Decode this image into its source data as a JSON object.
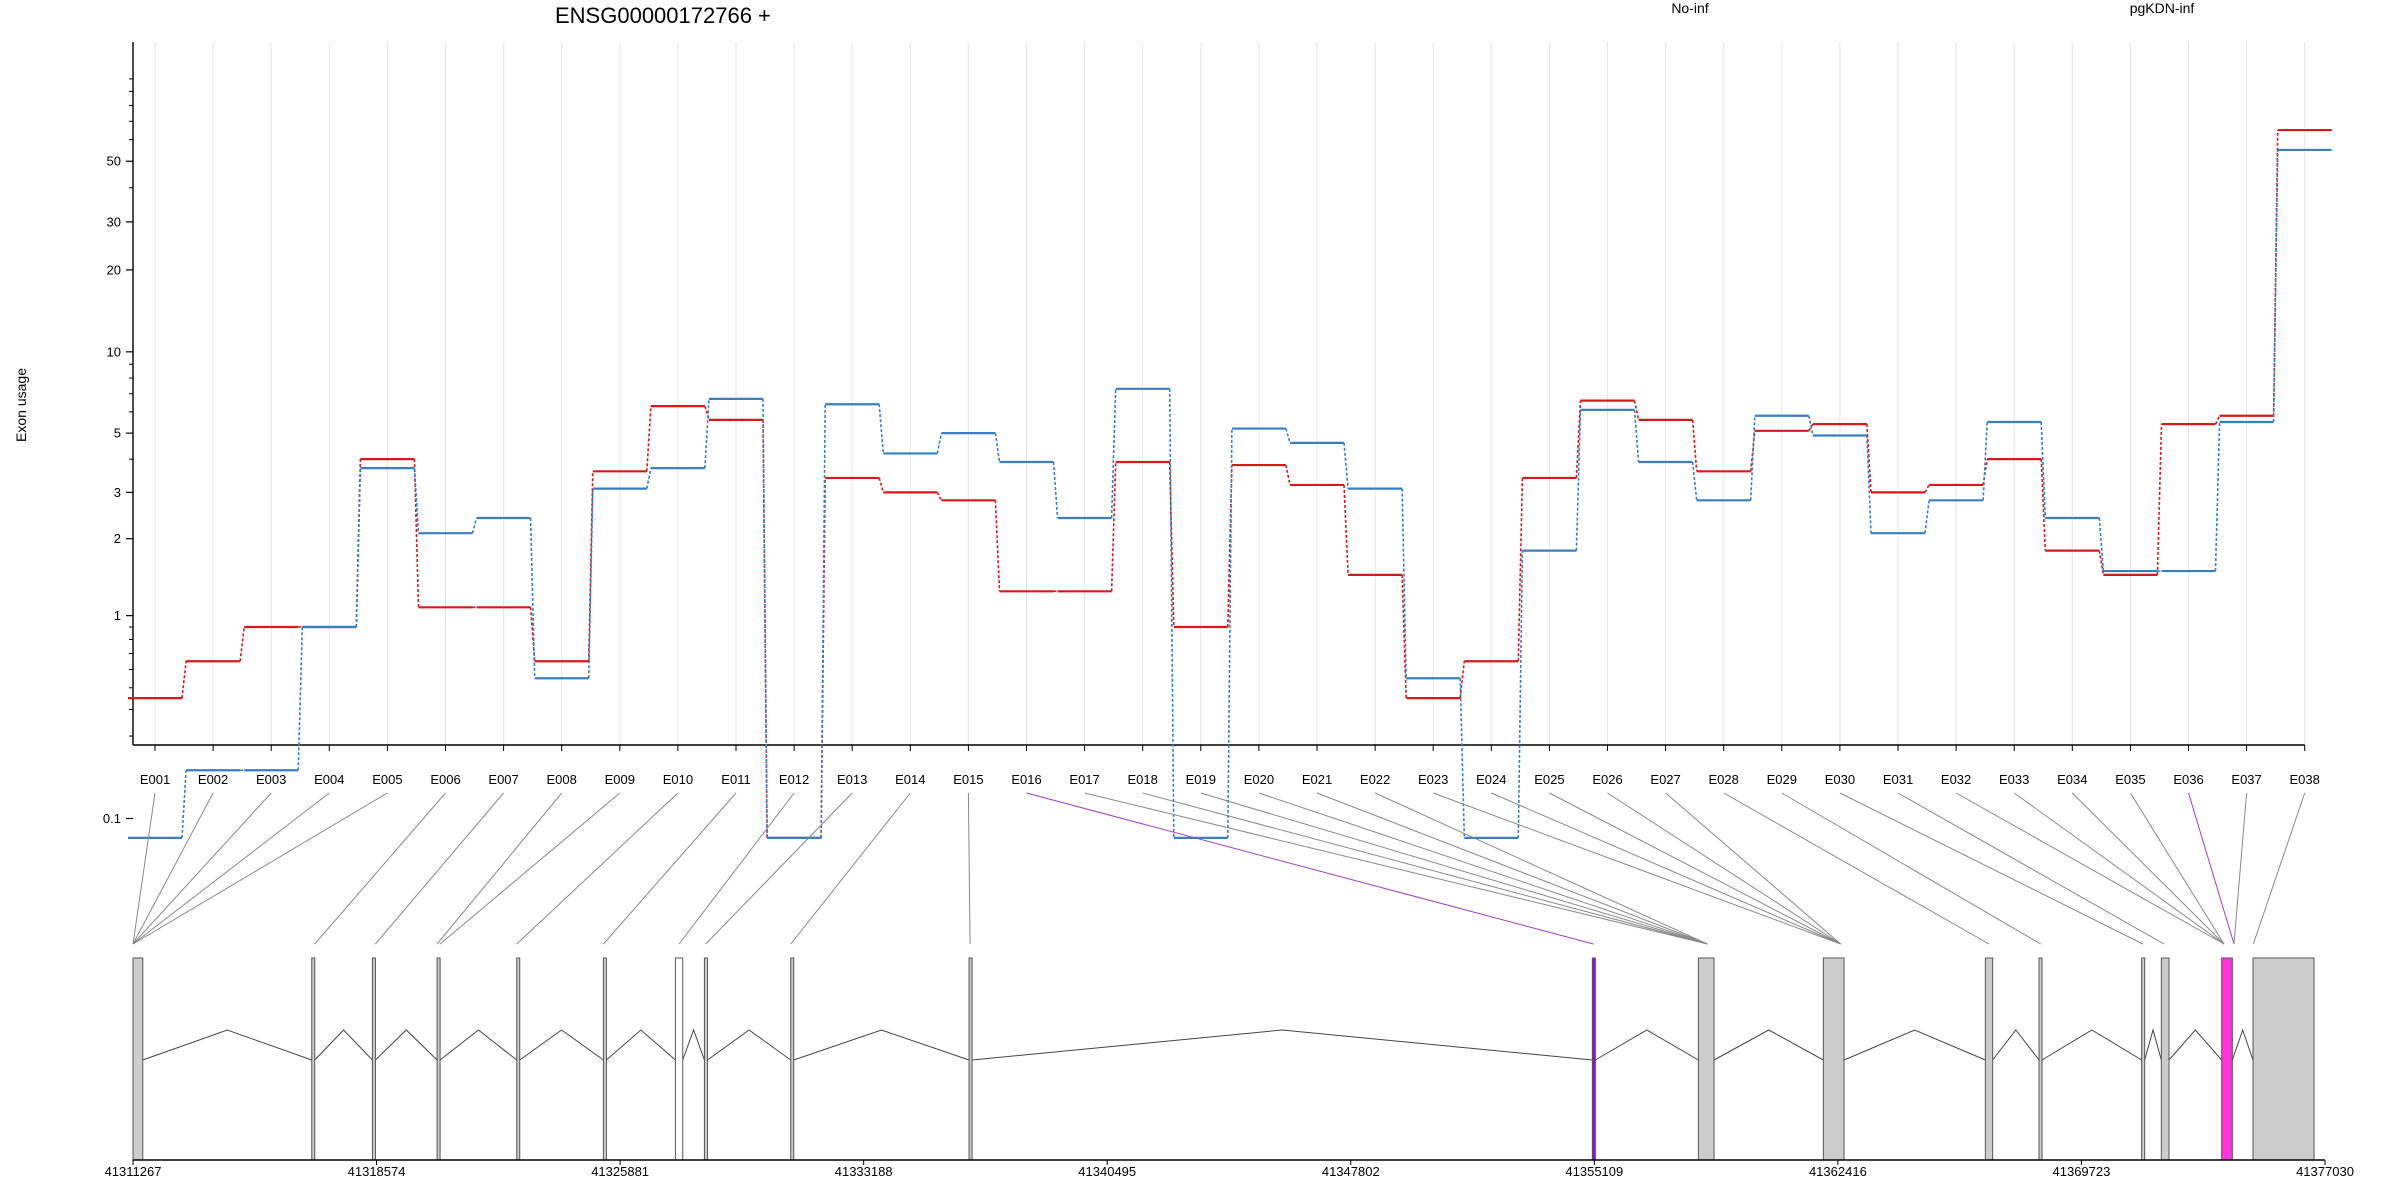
{
  "chart_data": {
    "type": "line",
    "title": "ENSG00000172766 +",
    "ylabel": "Exon usage",
    "yscale": "log (offset)",
    "y_ticks": [
      0.1,
      1,
      2,
      3,
      5,
      10,
      20,
      30,
      50
    ],
    "y_tick_labels": [
      "0.1",
      "1",
      "2",
      "3",
      "5",
      "10",
      "20",
      "30",
      "50"
    ],
    "grid": "vertical",
    "legend_position": "top",
    "categories": [
      "E001",
      "E002",
      "E003",
      "E004",
      "E005",
      "E006",
      "E007",
      "E008",
      "E009",
      "E010",
      "E011",
      "E012",
      "E013",
      "E014",
      "E015",
      "E016",
      "E017",
      "E018",
      "E019",
      "E020",
      "E021",
      "E022",
      "E023",
      "E024",
      "E025",
      "E026",
      "E027",
      "E028",
      "E029",
      "E030",
      "E031",
      "E032",
      "E033",
      "E034",
      "E035",
      "E036",
      "E037",
      "E038"
    ],
    "series": [
      {
        "name": "No-inf",
        "color": "#d7191c",
        "values": [
          0.45,
          0.65,
          0.9,
          0.9,
          4.0,
          1.08,
          1.08,
          0.65,
          3.6,
          6.3,
          5.6,
          0.07,
          3.4,
          3.0,
          2.8,
          1.25,
          1.25,
          3.9,
          0.9,
          3.8,
          3.2,
          1.45,
          0.45,
          0.65,
          3.4,
          6.6,
          5.6,
          3.6,
          5.1,
          5.4,
          3.0,
          3.2,
          4.0,
          1.8,
          1.45,
          5.4,
          5.8,
          65
        ]
      },
      {
        "name": "pgKDN-inf",
        "color": "#3a7ebf",
        "values": [
          0.07,
          0.2,
          0.2,
          0.9,
          3.7,
          2.1,
          2.4,
          0.55,
          3.1,
          3.7,
          6.7,
          0.07,
          6.4,
          4.2,
          5.0,
          3.9,
          2.4,
          7.3,
          0.07,
          5.2,
          4.6,
          3.1,
          0.55,
          0.07,
          1.8,
          6.1,
          3.9,
          2.8,
          5.8,
          4.9,
          2.1,
          2.8,
          5.5,
          2.4,
          1.5,
          1.5,
          5.5,
          55
        ]
      }
    ],
    "genomic_axis": {
      "ticks": [
        "41311267",
        "41318574",
        "41325881",
        "41333188",
        "41340495",
        "41347802",
        "41355109",
        "41362416",
        "41369723",
        "41377030"
      ]
    },
    "highlight_color": "#ff33dd",
    "highlighted_exons": [
      "E016",
      "E036"
    ]
  }
}
